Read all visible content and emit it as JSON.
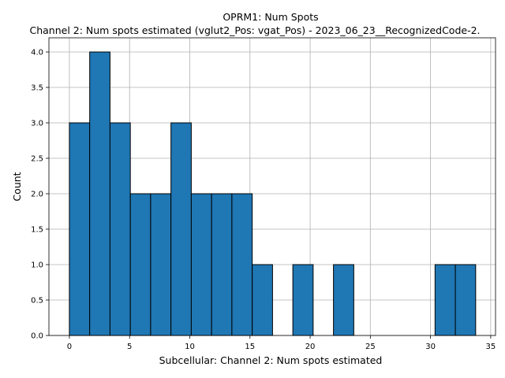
{
  "chart_data": {
    "type": "bar",
    "title": "OPRM1: Num Spots",
    "subtitle": "Channel 2: Num spots estimated (vglut2_Pos: vgat_Pos) - 2023_06_23__RecognizedCode-2.",
    "xlabel": "Subcellular: Channel 2: Num spots estimated",
    "ylabel": "Count",
    "xlim": [
      -1.7,
      35.4
    ],
    "ylim": [
      0,
      4.2
    ],
    "xticks": [
      0,
      5,
      10,
      15,
      20,
      25,
      30,
      35
    ],
    "yticks": [
      0.0,
      0.5,
      1.0,
      1.5,
      2.0,
      2.5,
      3.0,
      3.5,
      4.0
    ],
    "ytick_labels": [
      "0.0",
      "0.5",
      "1.0",
      "1.5",
      "2.0",
      "2.5",
      "3.0",
      "3.5",
      "4.0"
    ],
    "grid": true,
    "bar_color": "#1f77b4",
    "bin_edges": [
      0,
      1.6875,
      3.375,
      5.0625,
      6.75,
      8.4375,
      10.125,
      11.8125,
      13.5,
      15.1875,
      16.875,
      18.5625,
      20.25,
      21.9375,
      23.625,
      25.3125,
      27.0,
      28.6875,
      30.375,
      32.0625,
      33.75
    ],
    "values": [
      3,
      4,
      3,
      2,
      2,
      3,
      2,
      2,
      2,
      1,
      0,
      1,
      0,
      1,
      0,
      0,
      0,
      0,
      1,
      1
    ]
  }
}
